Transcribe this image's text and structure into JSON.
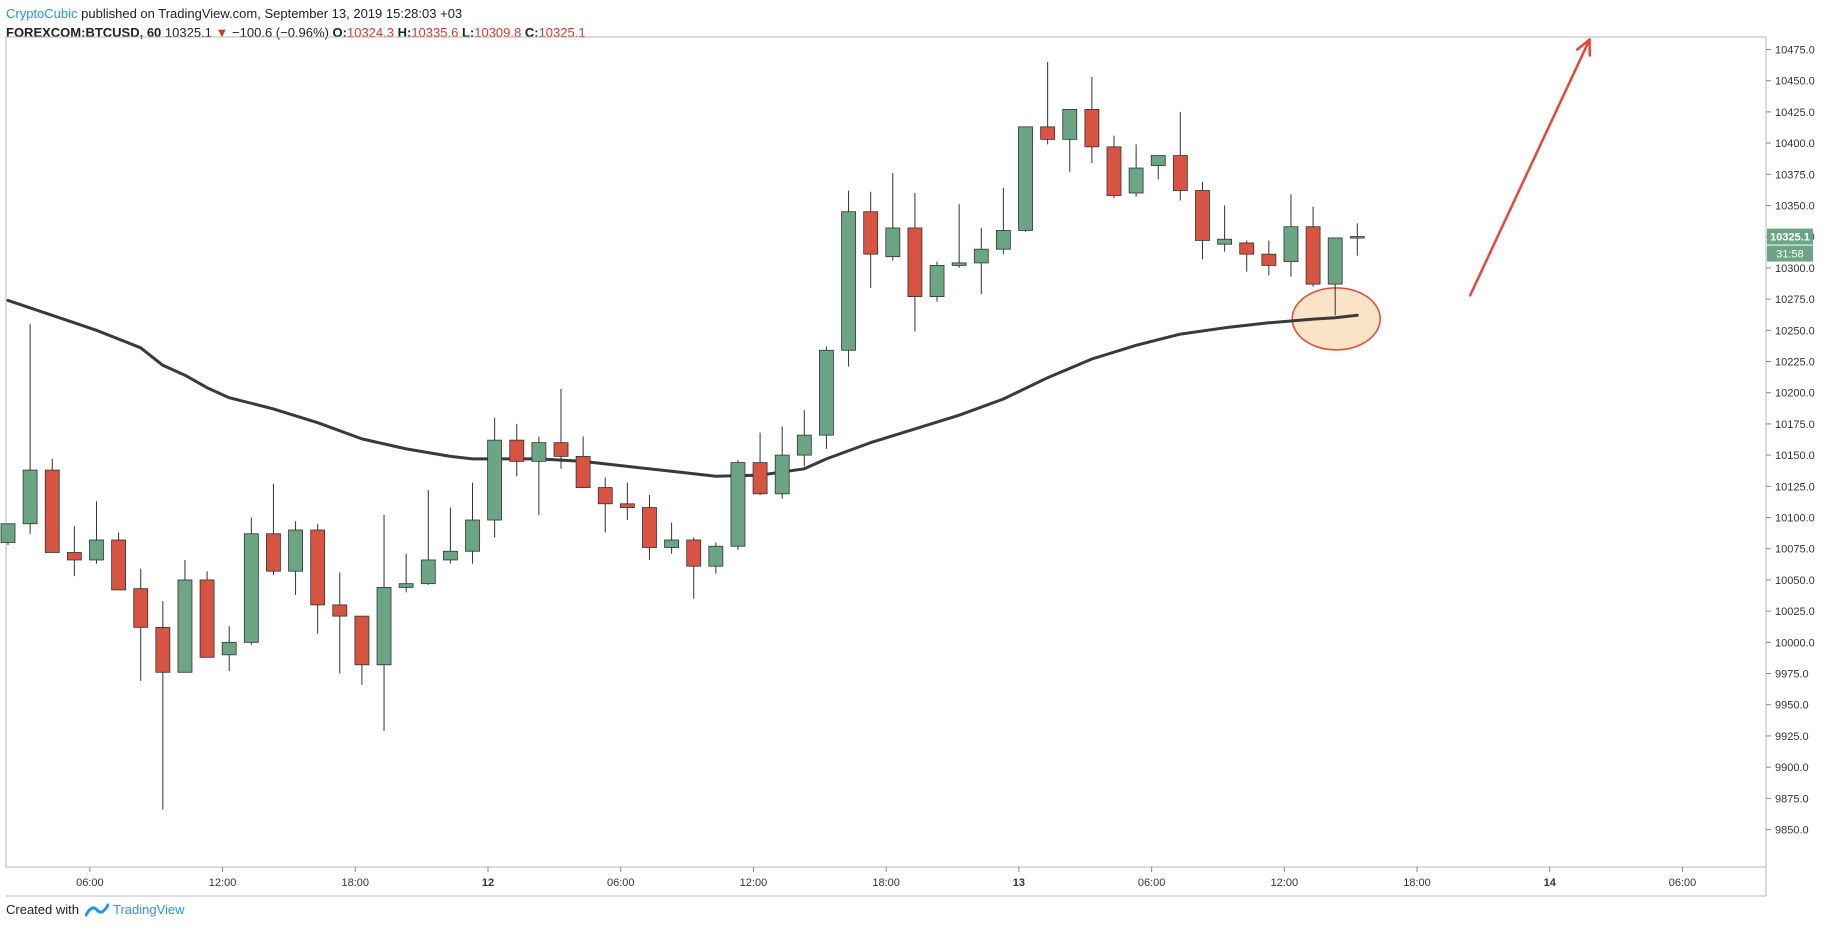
{
  "header": {
    "author": "CryptoCubic",
    "published": " published on TradingView.com, September 13, 2019 15:28:03 +03",
    "symbol": "FOREXCOM:BTCUSD, 60",
    "last": "10325.1",
    "change": "−100.6 (−0.96%)",
    "o_label": "O:",
    "o_value": "10324.3",
    "h_label": "H:",
    "h_value": "10335.6",
    "l_label": "L:",
    "l_value": "10309.8",
    "c_label": "C:",
    "c_value": "10325.1",
    "down_glyph": "▼"
  },
  "footer": {
    "created_with": "Created with",
    "brand": "TradingView",
    "logo_icon": "tradingview-logo-icon"
  },
  "colors": {
    "up": "#6ba583",
    "down": "#d75442",
    "ma": "#3a3a3a",
    "arrow": "#e8463a",
    "circle_fill": "#fbe3c8",
    "circle_stroke": "#e8463a",
    "price_label": "#6ba583"
  },
  "chart_data": {
    "type": "candlestick",
    "symbol": "FOREXCOM:BTCUSD",
    "interval": "60",
    "ylim": [
      9820,
      10485
    ],
    "y_ticks": [
      9850,
      9875,
      9900,
      9925,
      9950,
      9975,
      10000,
      10025,
      10050,
      10075,
      10100,
      10125,
      10150,
      10175,
      10200,
      10225,
      10250,
      10275,
      10300,
      10325,
      10350,
      10375,
      10400,
      10425,
      10450,
      10475
    ],
    "x_ticks": [
      {
        "i": 3.7,
        "label": "06:00",
        "bold": false
      },
      {
        "i": 9.7,
        "label": "12:00",
        "bold": false
      },
      {
        "i": 15.7,
        "label": "18:00",
        "bold": false
      },
      {
        "i": 21.7,
        "label": "12",
        "bold": true
      },
      {
        "i": 27.7,
        "label": "06:00",
        "bold": false
      },
      {
        "i": 33.7,
        "label": "12:00",
        "bold": false
      },
      {
        "i": 39.7,
        "label": "18:00",
        "bold": false
      },
      {
        "i": 45.7,
        "label": "13",
        "bold": true
      },
      {
        "i": 51.7,
        "label": "06:00",
        "bold": false
      },
      {
        "i": 57.7,
        "label": "12:00",
        "bold": false
      },
      {
        "i": 63.7,
        "label": "18:00",
        "bold": false
      },
      {
        "i": 69.7,
        "label": "14",
        "bold": true
      },
      {
        "i": 75.7,
        "label": "06:00",
        "bold": false
      }
    ],
    "candles": [
      {
        "o": 10080,
        "h": 10095,
        "l": 10078,
        "c": 10095
      },
      {
        "o": 10095,
        "h": 10255,
        "l": 10087,
        "c": 10138
      },
      {
        "o": 10138,
        "h": 10147,
        "l": 10072,
        "c": 10072
      },
      {
        "o": 10072,
        "h": 10093,
        "l": 10053,
        "c": 10066
      },
      {
        "o": 10066,
        "h": 10113,
        "l": 10063,
        "c": 10082
      },
      {
        "o": 10082,
        "h": 10088,
        "l": 10042,
        "c": 10042
      },
      {
        "o": 10043,
        "h": 10059,
        "l": 9969,
        "c": 10012
      },
      {
        "o": 10012,
        "h": 10033,
        "l": 9866,
        "c": 9976
      },
      {
        "o": 9976,
        "h": 10066,
        "l": 9976,
        "c": 10050
      },
      {
        "o": 10050,
        "h": 10057,
        "l": 9988,
        "c": 9988
      },
      {
        "o": 9990,
        "h": 10013,
        "l": 9977,
        "c": 10000
      },
      {
        "o": 10000,
        "h": 10100,
        "l": 9998,
        "c": 10087
      },
      {
        "o": 10087,
        "h": 10127,
        "l": 10054,
        "c": 10057
      },
      {
        "o": 10057,
        "h": 10097,
        "l": 10038,
        "c": 10090
      },
      {
        "o": 10090,
        "h": 10095,
        "l": 10007,
        "c": 10030
      },
      {
        "o": 10030,
        "h": 10056,
        "l": 9975,
        "c": 10021
      },
      {
        "o": 10021,
        "h": 10021,
        "l": 9966,
        "c": 9982
      },
      {
        "o": 9982,
        "h": 10102,
        "l": 9929,
        "c": 10044
      },
      {
        "o": 10044,
        "h": 10071,
        "l": 10040,
        "c": 10047
      },
      {
        "o": 10047,
        "h": 10122,
        "l": 10046,
        "c": 10066
      },
      {
        "o": 10066,
        "h": 10108,
        "l": 10063,
        "c": 10073
      },
      {
        "o": 10073,
        "h": 10128,
        "l": 10063,
        "c": 10098
      },
      {
        "o": 10098,
        "h": 10180,
        "l": 10084,
        "c": 10162
      },
      {
        "o": 10162,
        "h": 10175,
        "l": 10133,
        "c": 10145
      },
      {
        "o": 10145,
        "h": 10165,
        "l": 10102,
        "c": 10160
      },
      {
        "o": 10160,
        "h": 10203,
        "l": 10139,
        "c": 10149
      },
      {
        "o": 10149,
        "h": 10165,
        "l": 10124,
        "c": 10124
      },
      {
        "o": 10124,
        "h": 10132,
        "l": 10088,
        "c": 10111
      },
      {
        "o": 10111,
        "h": 10128,
        "l": 10098,
        "c": 10108
      },
      {
        "o": 10108,
        "h": 10118,
        "l": 10066,
        "c": 10076
      },
      {
        "o": 10076,
        "h": 10096,
        "l": 10071,
        "c": 10082
      },
      {
        "o": 10082,
        "h": 10084,
        "l": 10035,
        "c": 10061
      },
      {
        "o": 10061,
        "h": 10080,
        "l": 10055,
        "c": 10077
      },
      {
        "o": 10077,
        "h": 10146,
        "l": 10074,
        "c": 10144
      },
      {
        "o": 10144,
        "h": 10168,
        "l": 10118,
        "c": 10119
      },
      {
        "o": 10119,
        "h": 10173,
        "l": 10115,
        "c": 10150
      },
      {
        "o": 10150,
        "h": 10186,
        "l": 10141,
        "c": 10166
      },
      {
        "o": 10166,
        "h": 10237,
        "l": 10155,
        "c": 10234
      },
      {
        "o": 10234,
        "h": 10362,
        "l": 10221,
        "c": 10345
      },
      {
        "o": 10345,
        "h": 10361,
        "l": 10284,
        "c": 10311
      },
      {
        "o": 10309,
        "h": 10376,
        "l": 10306,
        "c": 10332
      },
      {
        "o": 10332,
        "h": 10360,
        "l": 10249,
        "c": 10277
      },
      {
        "o": 10277,
        "h": 10305,
        "l": 10273,
        "c": 10302
      },
      {
        "o": 10302,
        "h": 10351,
        "l": 10300,
        "c": 10304
      },
      {
        "o": 10304,
        "h": 10332,
        "l": 10279,
        "c": 10315
      },
      {
        "o": 10315,
        "h": 10364,
        "l": 10311,
        "c": 10330
      },
      {
        "o": 10330,
        "h": 10413,
        "l": 10329,
        "c": 10413
      },
      {
        "o": 10413,
        "h": 10465,
        "l": 10399,
        "c": 10403
      },
      {
        "o": 10403,
        "h": 10427,
        "l": 10377,
        "c": 10427
      },
      {
        "o": 10427,
        "h": 10453,
        "l": 10384,
        "c": 10397
      },
      {
        "o": 10397,
        "h": 10406,
        "l": 10356,
        "c": 10358
      },
      {
        "o": 10360,
        "h": 10399,
        "l": 10357,
        "c": 10380
      },
      {
        "o": 10382,
        "h": 10390,
        "l": 10371,
        "c": 10390
      },
      {
        "o": 10390,
        "h": 10425,
        "l": 10354,
        "c": 10362
      },
      {
        "o": 10362,
        "h": 10369,
        "l": 10307,
        "c": 10322
      },
      {
        "o": 10319,
        "h": 10350,
        "l": 10313,
        "c": 10323
      },
      {
        "o": 10320,
        "h": 10322,
        "l": 10297,
        "c": 10311
      },
      {
        "o": 10311,
        "h": 10322,
        "l": 10294,
        "c": 10302
      },
      {
        "o": 10305,
        "h": 10359,
        "l": 10293,
        "c": 10333
      },
      {
        "o": 10333,
        "h": 10349,
        "l": 10285,
        "c": 10287
      },
      {
        "o": 10287,
        "h": 10322,
        "l": 10262,
        "c": 10324
      },
      {
        "o": 10324.3,
        "h": 10335.6,
        "l": 10309.8,
        "c": 10325.1
      }
    ],
    "moving_average": [
      {
        "i": 0,
        "v": 10274
      },
      {
        "i": 2,
        "v": 10262
      },
      {
        "i": 4,
        "v": 10250
      },
      {
        "i": 6,
        "v": 10236
      },
      {
        "i": 7,
        "v": 10222
      },
      {
        "i": 8,
        "v": 10214
      },
      {
        "i": 9,
        "v": 10204
      },
      {
        "i": 10,
        "v": 10196
      },
      {
        "i": 12,
        "v": 10187
      },
      {
        "i": 14,
        "v": 10176
      },
      {
        "i": 16,
        "v": 10163
      },
      {
        "i": 18,
        "v": 10155
      },
      {
        "i": 20,
        "v": 10149
      },
      {
        "i": 21,
        "v": 10147
      },
      {
        "i": 24,
        "v": 10147
      },
      {
        "i": 26,
        "v": 10145
      },
      {
        "i": 28,
        "v": 10141
      },
      {
        "i": 30,
        "v": 10137
      },
      {
        "i": 32,
        "v": 10133
      },
      {
        "i": 34,
        "v": 10134
      },
      {
        "i": 36,
        "v": 10139
      },
      {
        "i": 37,
        "v": 10147
      },
      {
        "i": 39,
        "v": 10160
      },
      {
        "i": 41,
        "v": 10171
      },
      {
        "i": 43,
        "v": 10182
      },
      {
        "i": 45,
        "v": 10195
      },
      {
        "i": 47,
        "v": 10212
      },
      {
        "i": 49,
        "v": 10227
      },
      {
        "i": 51,
        "v": 10238
      },
      {
        "i": 53,
        "v": 10247
      },
      {
        "i": 55,
        "v": 10252
      },
      {
        "i": 57,
        "v": 10256
      },
      {
        "i": 59,
        "v": 10259
      },
      {
        "i": 60,
        "v": 10260
      },
      {
        "i": 61,
        "v": 10262
      }
    ],
    "price_label": "10325.1",
    "countdown_label": "31:58",
    "annotations": {
      "circle": {
        "i": 60,
        "v": 10260
      },
      "arrow": {
        "from_i": 66.1,
        "from_v": 10278,
        "to_i": 71.5,
        "to_v": 10483
      }
    }
  }
}
